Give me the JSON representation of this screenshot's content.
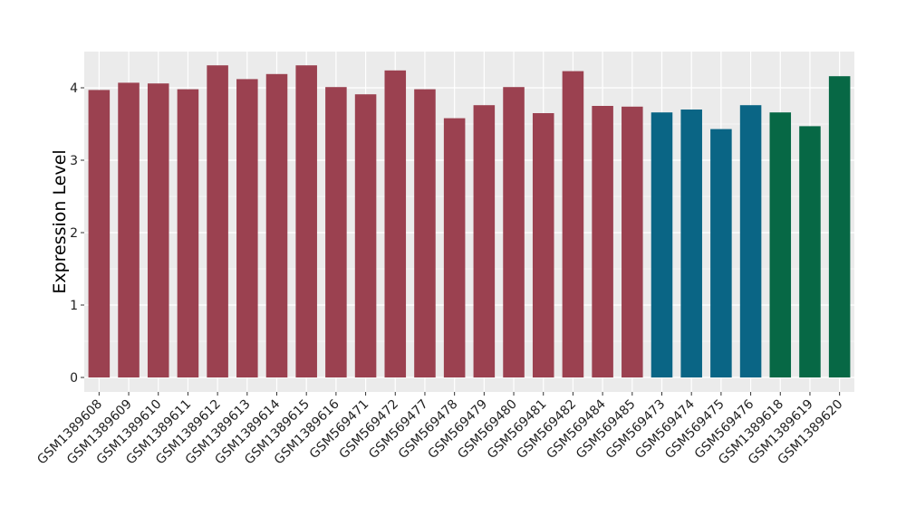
{
  "chart_data": {
    "type": "bar",
    "title": "",
    "xlabel": "",
    "ylabel": "Expression Level",
    "ylim": [
      -0.2,
      4.5
    ],
    "yticks": [
      0,
      1,
      2,
      3,
      4
    ],
    "grid": true,
    "legend": "none",
    "categories": [
      "GSM1389608",
      "GSM1389609",
      "GSM1389610",
      "GSM1389611",
      "GSM1389612",
      "GSM1389613",
      "GSM1389614",
      "GSM1389615",
      "GSM1389616",
      "GSM569471",
      "GSM569472",
      "GSM569477",
      "GSM569478",
      "GSM569479",
      "GSM569480",
      "GSM569481",
      "GSM569482",
      "GSM569484",
      "GSM569485",
      "GSM569473",
      "GSM569474",
      "GSM569475",
      "GSM569476",
      "GSM1389618",
      "GSM1389619",
      "GSM1389620"
    ],
    "values": [
      3.97,
      4.07,
      4.06,
      3.98,
      4.31,
      4.12,
      4.19,
      4.31,
      4.01,
      3.91,
      4.24,
      3.98,
      3.58,
      3.76,
      4.01,
      3.65,
      4.23,
      3.75,
      3.74,
      3.66,
      3.7,
      3.43,
      3.76,
      3.66,
      3.47,
      4.16
    ],
    "groups": [
      1,
      1,
      1,
      1,
      1,
      1,
      1,
      1,
      1,
      1,
      1,
      1,
      1,
      1,
      1,
      1,
      1,
      1,
      1,
      2,
      2,
      2,
      2,
      3,
      3,
      3
    ],
    "colors": {
      "1": "#9b4150",
      "2": "#0a6585",
      "3": "#076845"
    },
    "panel_background": "#ebebeb",
    "grid_color": "#ffffff"
  }
}
